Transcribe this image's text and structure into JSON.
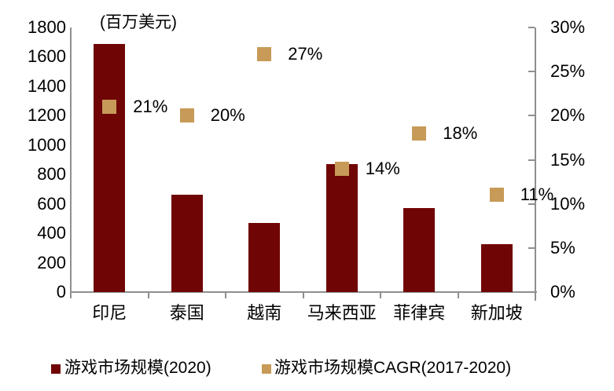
{
  "title": "(百万美元)",
  "colors": {
    "bar": "#700505",
    "marker": "#C79A58",
    "axis": "#8f8f8f",
    "text": "#000000"
  },
  "chart_data": {
    "type": "bar",
    "subtype": "combo-bar-with-scatter-markers",
    "title": "(百万美元)",
    "categories": [
      "印尼",
      "泰国",
      "越南",
      "马来西亚",
      "菲律宾",
      "新加坡"
    ],
    "series": [
      {
        "name": "游戏市场规模(2020)",
        "type": "bar",
        "axis": "left",
        "values": [
          1690,
          660,
          470,
          870,
          570,
          325
        ],
        "color": "#700505"
      },
      {
        "name": "游戏市场规模CAGR(2017-2020)",
        "type": "scatter",
        "axis": "right",
        "values": [
          21,
          20,
          27,
          14,
          18,
          11
        ],
        "data_labels": [
          "21%",
          "20%",
          "27%",
          "14%",
          "18%",
          "11%"
        ],
        "color": "#C79A58"
      }
    ],
    "left_axis": {
      "unit_label": "(百万美元)",
      "min": 0,
      "max": 1800,
      "step": 200,
      "tick_labels": [
        "1800",
        "1600",
        "1400",
        "1200",
        "1000",
        "800",
        "600",
        "400",
        "200",
        "0"
      ]
    },
    "right_axis": {
      "min": 0,
      "max": 30,
      "step": 5,
      "tick_labels": [
        "30%",
        "25%",
        "20%",
        "15%",
        "10%",
        "5%",
        "0%"
      ]
    },
    "grid": false,
    "legend_position": "bottom"
  },
  "legend": {
    "items": [
      {
        "label": "游戏市场规模(2020)",
        "color": "#700505"
      },
      {
        "label": "游戏市场规模CAGR(2017-2020)",
        "color": "#C79A58"
      }
    ]
  }
}
